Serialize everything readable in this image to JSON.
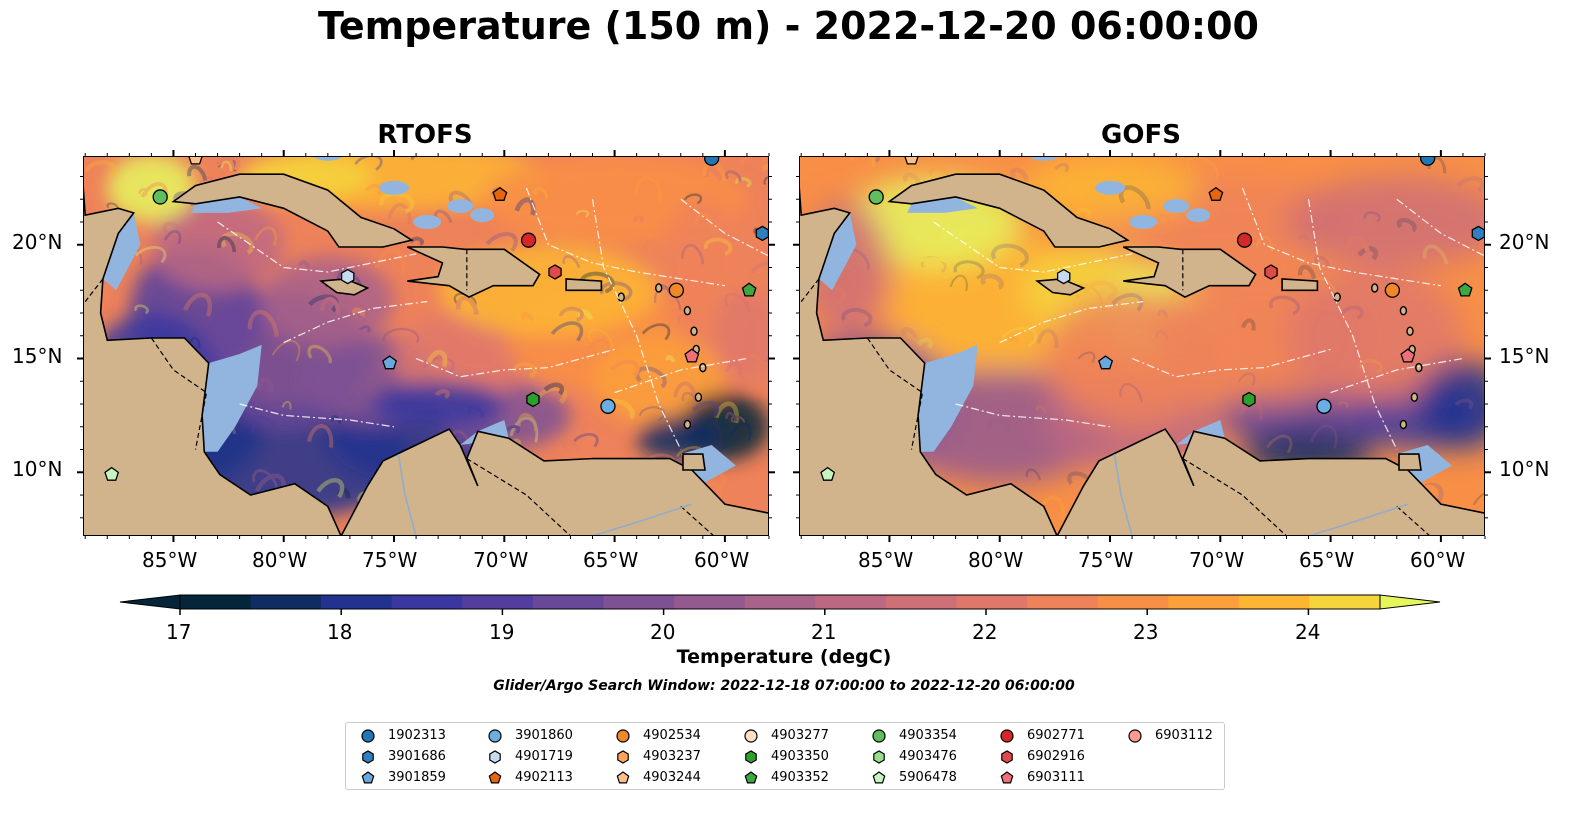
{
  "title": "Temperature (150 m) - 2022-12-20 06:00:00",
  "panels": [
    {
      "title": "RTOFS",
      "variant": "rtofs"
    },
    {
      "title": "GOFS",
      "variant": "gofs"
    }
  ],
  "lat_ticks": [
    "20°N",
    "15°N",
    "10°N"
  ],
  "lon_ticks": [
    "85°W",
    "80°W",
    "75°W",
    "70°W",
    "65°W",
    "60°W"
  ],
  "colorbar": {
    "label": "Temperature (degC)",
    "ticks": [
      "17",
      "18",
      "19",
      "20",
      "21",
      "22",
      "23",
      "24"
    ],
    "colors": [
      "#04253a",
      "#0f2d63",
      "#21338f",
      "#3a38a0",
      "#533e9f",
      "#69489a",
      "#7e5195",
      "#945a90",
      "#a9628a",
      "#bd6882",
      "#cf7077",
      "#df786b",
      "#ee825a",
      "#f88f47",
      "#fca03a",
      "#fdb632",
      "#f5d43c",
      "#e5f65d"
    ]
  },
  "map_colors": {
    "land": "#d1b48c",
    "shelf": "#92b5e0",
    "deep_cold": "#04253a"
  },
  "search_window": "Glider/Argo Search Window: 2022-12-18 07:00:00 to 2022-12-20 06:00:00",
  "floats": [
    {
      "id": "1902313",
      "shape": "circle",
      "color": "#1f77b4"
    },
    {
      "id": "3901686",
      "shape": "hexagon",
      "color": "#2f7fc1"
    },
    {
      "id": "3901859",
      "shape": "pentagon",
      "color": "#6aa8dc"
    },
    {
      "id": "3901860",
      "shape": "circle",
      "color": "#6aaee3"
    },
    {
      "id": "4901719",
      "shape": "hexagon",
      "color": "#c6dbef"
    },
    {
      "id": "4902113",
      "shape": "pentagon",
      "color": "#e6650d"
    },
    {
      "id": "4902534",
      "shape": "circle",
      "color": "#f0882a"
    },
    {
      "id": "4903237",
      "shape": "hexagon",
      "color": "#fda55c"
    },
    {
      "id": "4903244",
      "shape": "pentagon",
      "color": "#fdc08c"
    },
    {
      "id": "4903277",
      "shape": "circle",
      "color": "#fde0c5"
    },
    {
      "id": "4903350",
      "shape": "hexagon",
      "color": "#2ca02c"
    },
    {
      "id": "4903352",
      "shape": "pentagon",
      "color": "#3da83d"
    },
    {
      "id": "4903354",
      "shape": "circle",
      "color": "#5fbf5f"
    },
    {
      "id": "4903476",
      "shape": "hexagon",
      "color": "#98df8a"
    },
    {
      "id": "5906478",
      "shape": "pentagon",
      "color": "#c7f5c0"
    },
    {
      "id": "6902771",
      "shape": "circle",
      "color": "#d62728"
    },
    {
      "id": "6902916",
      "shape": "hexagon",
      "color": "#e04a4a"
    },
    {
      "id": "6903111",
      "shape": "pentagon",
      "color": "#f07078"
    },
    {
      "id": "6903112",
      "shape": "circle",
      "color": "#ff9896"
    }
  ],
  "float_positions": [
    {
      "id": "3901686",
      "lon": -58.3,
      "lat": 20.5
    },
    {
      "id": "4903354",
      "lon": -85.6,
      "lat": 22.1
    },
    {
      "id": "4902113",
      "lon": -70.2,
      "lat": 22.2
    },
    {
      "id": "6902771",
      "lon": -68.9,
      "lat": 20.2
    },
    {
      "id": "6902916",
      "lon": -67.7,
      "lat": 18.8
    },
    {
      "id": "4901719",
      "lon": -77.1,
      "lat": 18.6
    },
    {
      "id": "4902534",
      "lon": -62.2,
      "lat": 18.0
    },
    {
      "id": "4903352",
      "lon": -58.9,
      "lat": 18.0
    },
    {
      "id": "6903111",
      "lon": -61.5,
      "lat": 15.1
    },
    {
      "id": "3901859",
      "lon": -75.2,
      "lat": 14.8
    },
    {
      "id": "4903350",
      "lon": -68.7,
      "lat": 13.2
    },
    {
      "id": "3901860",
      "lon": -65.3,
      "lat": 12.9
    },
    {
      "id": "5906478",
      "lon": -87.8,
      "lat": 9.9
    },
    {
      "id": "1902313",
      "lon": -60.6,
      "lat": 23.8
    },
    {
      "id": "4903244",
      "lon": -84.0,
      "lat": 23.8
    }
  ]
}
